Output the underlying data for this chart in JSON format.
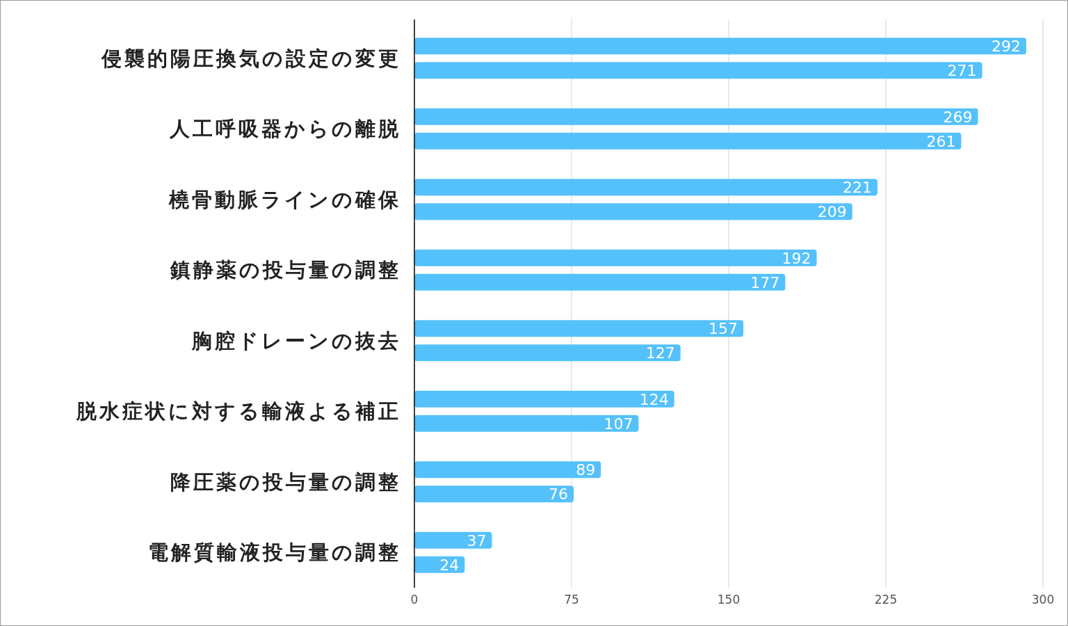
{
  "chart_data": {
    "type": "bar",
    "orientation": "horizontal",
    "categories": [
      "侵襲的陽圧換気の設定の変更",
      "人工呼吸器からの離脱",
      "橈骨動脈ラインの確保",
      "鎮静薬の投与量の調整",
      "胸腔ドレーンの抜去",
      "脱水症状に対する輸液よる補正",
      "降圧薬の投与量の調整",
      "電解質輸液投与量の調整"
    ],
    "series": [
      {
        "color": "#55c1fb",
        "values": [
          292,
          269,
          221,
          192,
          157,
          124,
          89,
          37
        ]
      },
      {
        "color": "#55c1fb",
        "values": [
          271,
          261,
          209,
          177,
          127,
          107,
          76,
          24
        ]
      }
    ],
    "xlim": [
      0,
      300
    ],
    "xticks": [
      0,
      75,
      150,
      225,
      300
    ],
    "grid": "x",
    "data_labels": true
  }
}
